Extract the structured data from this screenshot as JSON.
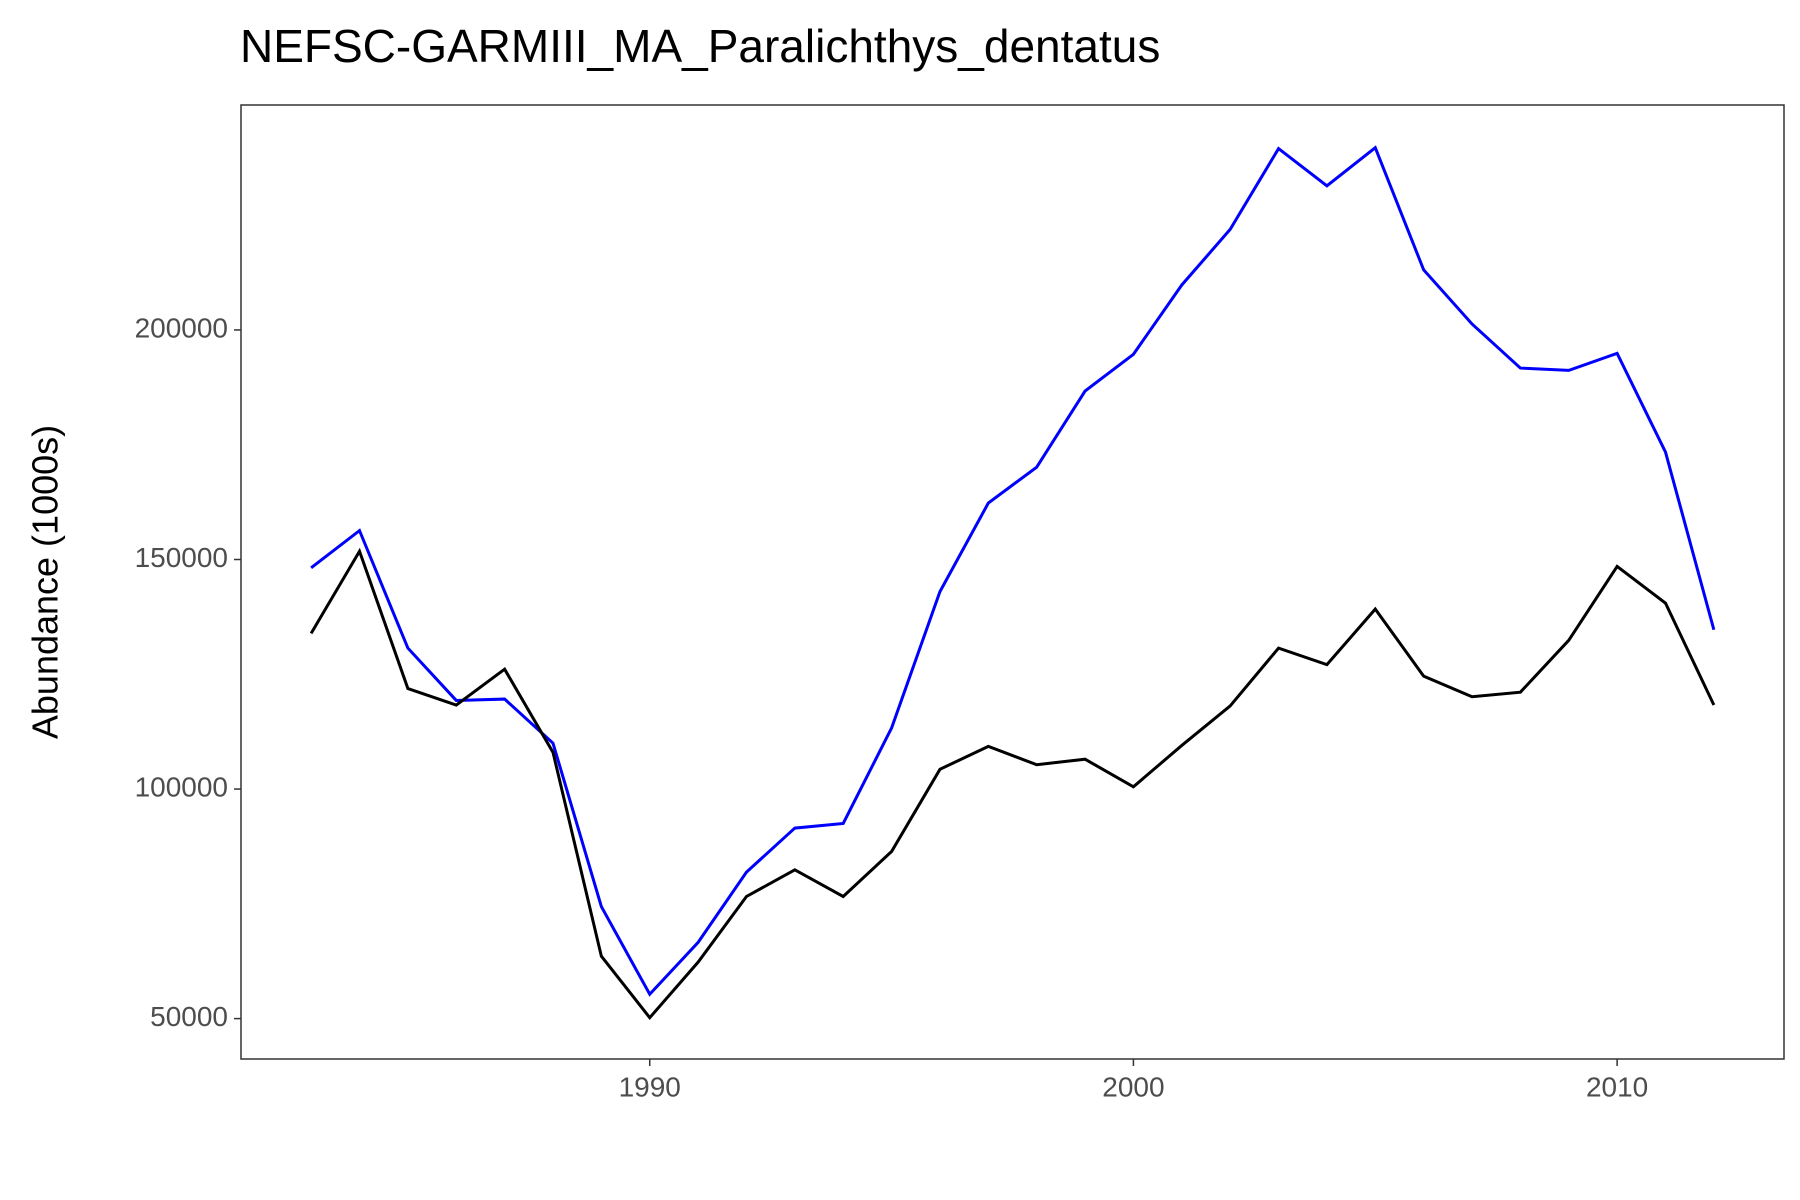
{
  "chart_data": {
    "type": "line",
    "title": "NEFSC-GARMIII_MA_Paralichthys_dentatus",
    "y_label": "Abundance (1000s)",
    "x": [
      1983,
      1984,
      1985,
      1986,
      1987,
      1988,
      1989,
      1990,
      1991,
      1992,
      1993,
      1994,
      1995,
      1996,
      1997,
      1998,
      1999,
      2000,
      2001,
      2002,
      2003,
      2004,
      2005,
      2006,
      2007,
      2008,
      2009,
      2010,
      2011,
      2012
    ],
    "series": [
      {
        "color": "#0000ff",
        "values": [
          148200,
          156300,
          130700,
          119300,
          119600,
          110000,
          74400,
          55300,
          66600,
          81900,
          91500,
          92500,
          113300,
          143000,
          162300,
          170100,
          186700,
          194700,
          209800,
          221900,
          239500,
          231400,
          239700,
          213100,
          201300,
          191700,
          191200,
          194900,
          173400,
          134700
        ]
      },
      {
        "color": "#000000",
        "values": [
          133900,
          151800,
          121900,
          118300,
          126100,
          108000,
          63600,
          50200,
          62300,
          76600,
          82400,
          76600,
          86400,
          104300,
          109300,
          105300,
          106500,
          100500,
          109500,
          118100,
          130700,
          127100,
          139200,
          124600,
          120100,
          121100,
          132400,
          148500,
          140500,
          118300
        ]
      }
    ],
    "xlim": [
      1981.55,
      2013.45
    ],
    "xticks": [
      1990,
      2000,
      2010
    ],
    "ylim": [
      41200,
      249000
    ],
    "yticks": [
      50000,
      100000,
      150000,
      200000
    ],
    "grid": false
  }
}
